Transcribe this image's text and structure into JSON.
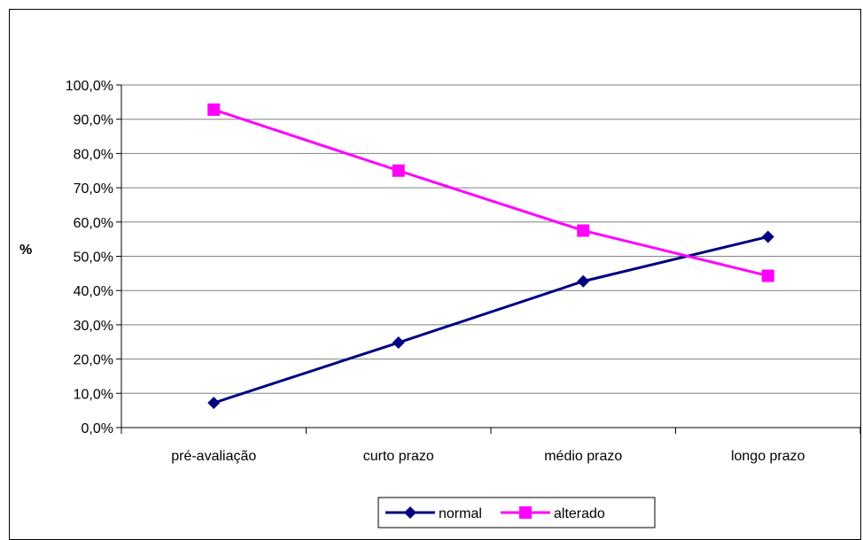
{
  "chart_data": {
    "type": "line",
    "title": "",
    "xlabel": "",
    "ylabel": "%",
    "categories": [
      "pré-avaliação",
      "curto prazo",
      "médio prazo",
      "longo prazo"
    ],
    "yticks": [
      "0,0%",
      "10,0%",
      "20,0%",
      "30,0%",
      "40,0%",
      "50,0%",
      "60,0%",
      "70,0%",
      "80,0%",
      "90,0%",
      "100,0%"
    ],
    "ylim": [
      0,
      100
    ],
    "grid": true,
    "legend_position": "bottom",
    "series": [
      {
        "name": "normal",
        "values": [
          7.2,
          24.8,
          42.7,
          55.7
        ],
        "color": "#000080",
        "marker": "diamond"
      },
      {
        "name": "alterado",
        "values": [
          92.8,
          75.0,
          57.5,
          44.3
        ],
        "color": "#ff00ff",
        "marker": "square"
      }
    ]
  }
}
